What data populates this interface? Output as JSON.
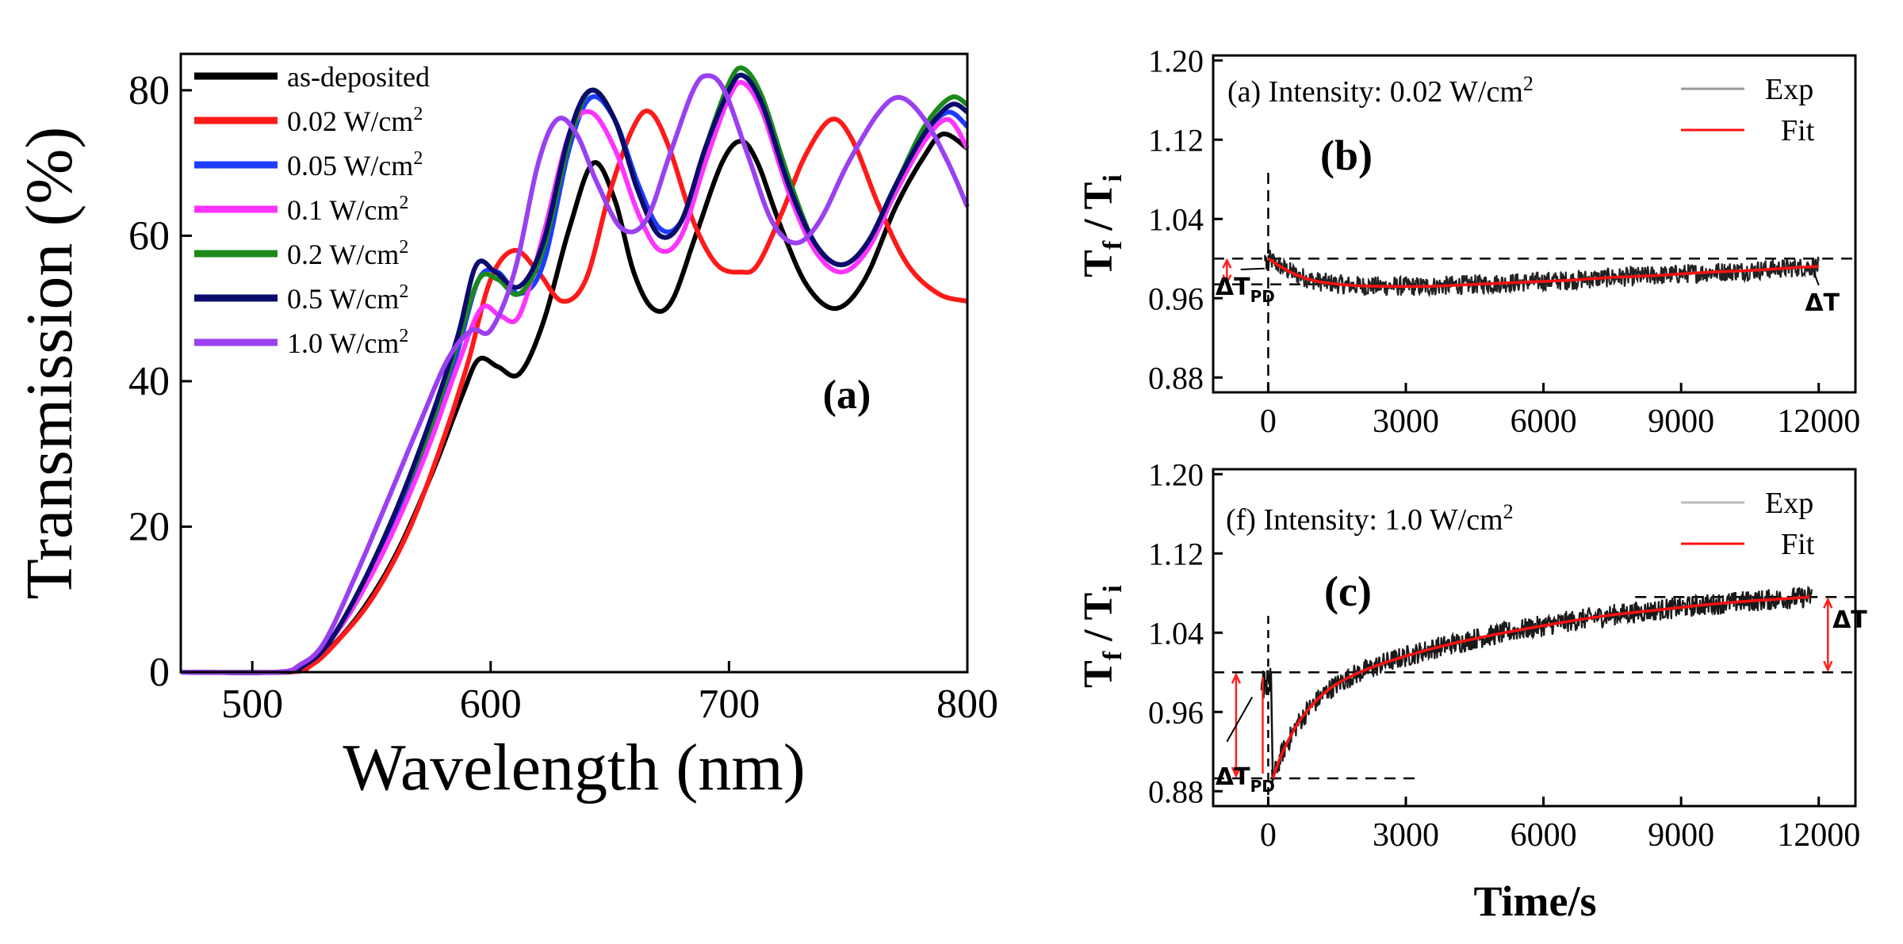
{
  "colors": {
    "as_deposited": "#000000",
    "i002": "#ff1a1a",
    "i005": "#1e3cff",
    "i01": "#ff33ff",
    "i02": "#1b8a1b",
    "i05": "#0b0b6e",
    "i10": "#9a40f0",
    "fit": "#ff1111",
    "exp": "#111111",
    "arrow": "#ff2020"
  },
  "chart_data": [
    {
      "id": "a",
      "type": "line",
      "panel_label": "(a)",
      "xlabel": "Wavelength (nm)",
      "ylabel": "Transmission (%)",
      "xlim": [
        470,
        800
      ],
      "ylim": [
        0,
        85
      ],
      "xticks": [
        500,
        600,
        700,
        800
      ],
      "yticks": [
        0,
        20,
        40,
        60,
        80
      ],
      "legend_position": "top-left",
      "series": [
        {
          "name": "as-deposited",
          "label_base": "as-deposited",
          "label_sup": "",
          "color": "#000000",
          "points": [
            [
              470,
              0
            ],
            [
              510,
              0
            ],
            [
              520,
              0.5
            ],
            [
              530,
              2.5
            ],
            [
              545,
              8
            ],
            [
              560,
              16
            ],
            [
              575,
              27
            ],
            [
              588,
              38
            ],
            [
              595,
              43
            ],
            [
              603,
              42
            ],
            [
              612,
              41
            ],
            [
              622,
              48
            ],
            [
              633,
              61
            ],
            [
              643,
              70
            ],
            [
              652,
              65
            ],
            [
              660,
              55
            ],
            [
              668,
              50
            ],
            [
              676,
              51
            ],
            [
              686,
              60
            ],
            [
              697,
              70
            ],
            [
              705,
              73
            ],
            [
              712,
              70
            ],
            [
              722,
              61
            ],
            [
              733,
              53
            ],
            [
              745,
              50
            ],
            [
              757,
              54
            ],
            [
              770,
              64
            ],
            [
              782,
              71
            ],
            [
              790,
              74
            ],
            [
              800,
              72
            ]
          ]
        },
        {
          "name": "0.02 W/cm2",
          "label_base": "0.02 W/cm",
          "label_sup": "2",
          "color": "#ff1a1a",
          "points": [
            [
              470,
              0
            ],
            [
              515,
              0
            ],
            [
              525,
              1
            ],
            [
              535,
              4
            ],
            [
              550,
              10
            ],
            [
              565,
              19
            ],
            [
              578,
              30
            ],
            [
              590,
              42
            ],
            [
              600,
              54
            ],
            [
              610,
              58
            ],
            [
              620,
              55
            ],
            [
              630,
              51
            ],
            [
              640,
              54
            ],
            [
              650,
              66
            ],
            [
              660,
              75
            ],
            [
              667,
              77
            ],
            [
              675,
              72
            ],
            [
              685,
              62
            ],
            [
              695,
              56
            ],
            [
              705,
              55
            ],
            [
              712,
              56
            ],
            [
              722,
              63
            ],
            [
              732,
              71
            ],
            [
              743,
              76
            ],
            [
              752,
              73
            ],
            [
              763,
              64
            ],
            [
              775,
              56
            ],
            [
              788,
              52
            ],
            [
              800,
              51
            ]
          ]
        },
        {
          "name": "0.05 W/cm2",
          "label_base": "0.05 W/cm",
          "label_sup": "2",
          "color": "#1e3cff",
          "points": [
            [
              470,
              0
            ],
            [
              512,
              0
            ],
            [
              522,
              1
            ],
            [
              532,
              4
            ],
            [
              546,
              11
            ],
            [
              560,
              21
            ],
            [
              574,
              32
            ],
            [
              586,
              44
            ],
            [
              595,
              54
            ],
            [
              603,
              55
            ],
            [
              612,
              52
            ],
            [
              622,
              56
            ],
            [
              633,
              72
            ],
            [
              642,
              79
            ],
            [
              652,
              76
            ],
            [
              662,
              67
            ],
            [
              671,
              61
            ],
            [
              680,
              62
            ],
            [
              690,
              71
            ],
            [
              700,
              80
            ],
            [
              706,
              82
            ],
            [
              714,
              78
            ],
            [
              725,
              67
            ],
            [
              736,
              59
            ],
            [
              747,
              56
            ],
            [
              758,
              59
            ],
            [
              770,
              67
            ],
            [
              782,
              74
            ],
            [
              792,
              77
            ],
            [
              800,
              75
            ]
          ]
        },
        {
          "name": "0.1 W/cm2",
          "label_base": "0.1 W/cm",
          "label_sup": "2",
          "color": "#ff33ff",
          "points": [
            [
              470,
              0
            ],
            [
              512,
              0
            ],
            [
              522,
              1
            ],
            [
              532,
              4
            ],
            [
              546,
              11
            ],
            [
              560,
              20
            ],
            [
              574,
              31
            ],
            [
              586,
              42
            ],
            [
              596,
              50
            ],
            [
              604,
              49
            ],
            [
              612,
              49
            ],
            [
              622,
              60
            ],
            [
              633,
              74
            ],
            [
              642,
              77
            ],
            [
              652,
              72
            ],
            [
              662,
              63
            ],
            [
              671,
              58
            ],
            [
              680,
              60
            ],
            [
              690,
              70
            ],
            [
              700,
              79
            ],
            [
              706,
              81
            ],
            [
              714,
              77
            ],
            [
              725,
              66
            ],
            [
              736,
              58
            ],
            [
              747,
              55
            ],
            [
              758,
              58
            ],
            [
              770,
              66
            ],
            [
              782,
              73
            ],
            [
              792,
              76
            ],
            [
              800,
              72
            ]
          ]
        },
        {
          "name": "0.2 W/cm2",
          "label_base": "0.2 W/cm",
          "label_sup": "2",
          "color": "#1b8a1b",
          "points": [
            [
              470,
              0
            ],
            [
              512,
              0
            ],
            [
              522,
              1
            ],
            [
              532,
              4
            ],
            [
              546,
              12
            ],
            [
              560,
              22
            ],
            [
              574,
              33
            ],
            [
              586,
              45
            ],
            [
              595,
              54
            ],
            [
              603,
              54
            ],
            [
              612,
              52
            ],
            [
              622,
              58
            ],
            [
              633,
              73
            ],
            [
              642,
              80
            ],
            [
              652,
              76
            ],
            [
              662,
              66
            ],
            [
              671,
              60
            ],
            [
              680,
              62
            ],
            [
              690,
              72
            ],
            [
              700,
              81
            ],
            [
              706,
              83
            ],
            [
              714,
              79
            ],
            [
              725,
              68
            ],
            [
              736,
              59
            ],
            [
              747,
              56
            ],
            [
              758,
              59
            ],
            [
              770,
              67
            ],
            [
              782,
              75
            ],
            [
              793,
              79
            ],
            [
              800,
              78
            ]
          ]
        },
        {
          "name": "0.5 W/cm2",
          "label_base": "0.5 W/cm",
          "label_sup": "2",
          "color": "#0b0b6e",
          "points": [
            [
              470,
              0
            ],
            [
              512,
              0
            ],
            [
              522,
              1
            ],
            [
              532,
              4
            ],
            [
              546,
              12
            ],
            [
              560,
              22
            ],
            [
              574,
              34
            ],
            [
              586,
              46
            ],
            [
              594,
              56
            ],
            [
              602,
              55
            ],
            [
              612,
              53
            ],
            [
              622,
              59
            ],
            [
              633,
              74
            ],
            [
              642,
              80
            ],
            [
              652,
              76
            ],
            [
              662,
              66
            ],
            [
              671,
              60
            ],
            [
              680,
              62
            ],
            [
              690,
              72
            ],
            [
              700,
              80
            ],
            [
              706,
              82
            ],
            [
              714,
              78
            ],
            [
              725,
              67
            ],
            [
              736,
              59
            ],
            [
              747,
              56
            ],
            [
              758,
              59
            ],
            [
              770,
              67
            ],
            [
              782,
              74
            ],
            [
              793,
              78
            ],
            [
              800,
              77
            ]
          ]
        },
        {
          "name": "1.0 W/cm2",
          "label_base": "1.0 W/cm",
          "label_sup": "2",
          "color": "#9a40f0",
          "points": [
            [
              470,
              0
            ],
            [
              510,
              0
            ],
            [
              520,
              1
            ],
            [
              530,
              4
            ],
            [
              543,
              13
            ],
            [
              556,
              23
            ],
            [
              570,
              34
            ],
            [
              582,
              43
            ],
            [
              592,
              47
            ],
            [
              600,
              47
            ],
            [
              610,
              55
            ],
            [
              620,
              70
            ],
            [
              628,
              76
            ],
            [
              636,
              74
            ],
            [
              645,
              67
            ],
            [
              655,
              61
            ],
            [
              665,
              62
            ],
            [
              675,
              71
            ],
            [
              685,
              80
            ],
            [
              691,
              82
            ],
            [
              698,
              80
            ],
            [
              708,
              71
            ],
            [
              718,
              62
            ],
            [
              728,
              59
            ],
            [
              738,
              62
            ],
            [
              750,
              70
            ],
            [
              763,
              77
            ],
            [
              772,
              79
            ],
            [
              782,
              76
            ],
            [
              792,
              70
            ],
            [
              800,
              64
            ]
          ]
        }
      ]
    },
    {
      "id": "b",
      "type": "line",
      "panel_label": "(b)",
      "annotation": "(a) Intensity: 0.02 W/cm",
      "annotation_sup": "2",
      "xlabel": "",
      "ylabel": "Tf / Ti",
      "ylabel_base1": "T",
      "ylabel_sub1": "f",
      "ylabel_mid": " / ",
      "ylabel_base2": "T",
      "ylabel_sub2": "i",
      "xlim": [
        -1200,
        12800
      ],
      "ylim": [
        0.865,
        1.205
      ],
      "xticks": [
        0,
        3000,
        6000,
        9000,
        12000
      ],
      "yticks": [
        0.88,
        0.96,
        1.04,
        1.12,
        1.2
      ],
      "ytick_labels": [
        "0.88",
        "0.96",
        "1.04",
        "1.12",
        "1.20"
      ],
      "legend": [
        {
          "label": "Exp",
          "color": "#999999"
        },
        {
          "label": "Fit",
          "color": "#ff1111"
        }
      ],
      "legend_position": "top-right",
      "hlines": [
        1.0,
        0.974
      ],
      "vline": 0,
      "delta_labels": [
        {
          "base": "ΔT",
          "sub": "PD"
        },
        {
          "base": "ΔT",
          "sub": ""
        }
      ],
      "fit": [
        [
          0,
          1.0
        ],
        [
          300,
          0.991
        ],
        [
          600,
          0.984
        ],
        [
          900,
          0.979
        ],
        [
          1200,
          0.976
        ],
        [
          1800,
          0.973
        ],
        [
          2500,
          0.972
        ],
        [
          3500,
          0.972
        ],
        [
          4500,
          0.974
        ],
        [
          5500,
          0.976
        ],
        [
          6500,
          0.978
        ],
        [
          7500,
          0.981
        ],
        [
          8500,
          0.983
        ],
        [
          9500,
          0.986
        ],
        [
          10500,
          0.988
        ],
        [
          11500,
          0.991
        ],
        [
          12000,
          0.992
        ]
      ]
    },
    {
      "id": "c",
      "type": "line",
      "panel_label": "(c)",
      "annotation": "(f) Intensity: 1.0 W/cm",
      "annotation_sup": "2",
      "xlabel": "Time/s",
      "ylabel": "Tf / Ti",
      "ylabel_base1": "T",
      "ylabel_sub1": "f",
      "ylabel_mid": " / ",
      "ylabel_base2": "T",
      "ylabel_sub2": "i",
      "xlim": [
        -1200,
        12800
      ],
      "ylim": [
        0.865,
        1.205
      ],
      "xticks": [
        0,
        3000,
        6000,
        9000,
        12000
      ],
      "yticks": [
        0.88,
        0.96,
        1.04,
        1.12,
        1.2
      ],
      "ytick_labels": [
        "0.88",
        "0.96",
        "1.04",
        "1.12",
        "1.20"
      ],
      "legend": [
        {
          "label": "Exp",
          "color": "#bbbbbb"
        },
        {
          "label": "Fit",
          "color": "#ff1111"
        }
      ],
      "legend_position": "top-right",
      "hlines": [
        1.0,
        0.893,
        1.076
      ],
      "vline": 0,
      "delta_labels": [
        {
          "base": "ΔT",
          "sub": "PD"
        },
        {
          "base": "ΔT",
          "sub": ""
        }
      ],
      "fit": [
        [
          100,
          0.893
        ],
        [
          300,
          0.918
        ],
        [
          600,
          0.945
        ],
        [
          900,
          0.964
        ],
        [
          1300,
          0.982
        ],
        [
          1800,
          0.996
        ],
        [
          2500,
          1.009
        ],
        [
          3500,
          1.023
        ],
        [
          4500,
          1.034
        ],
        [
          5500,
          1.043
        ],
        [
          6500,
          1.051
        ],
        [
          7500,
          1.058
        ],
        [
          8500,
          1.063
        ],
        [
          9500,
          1.068
        ],
        [
          10500,
          1.072
        ],
        [
          11500,
          1.075
        ],
        [
          11800,
          1.076
        ]
      ]
    }
  ]
}
